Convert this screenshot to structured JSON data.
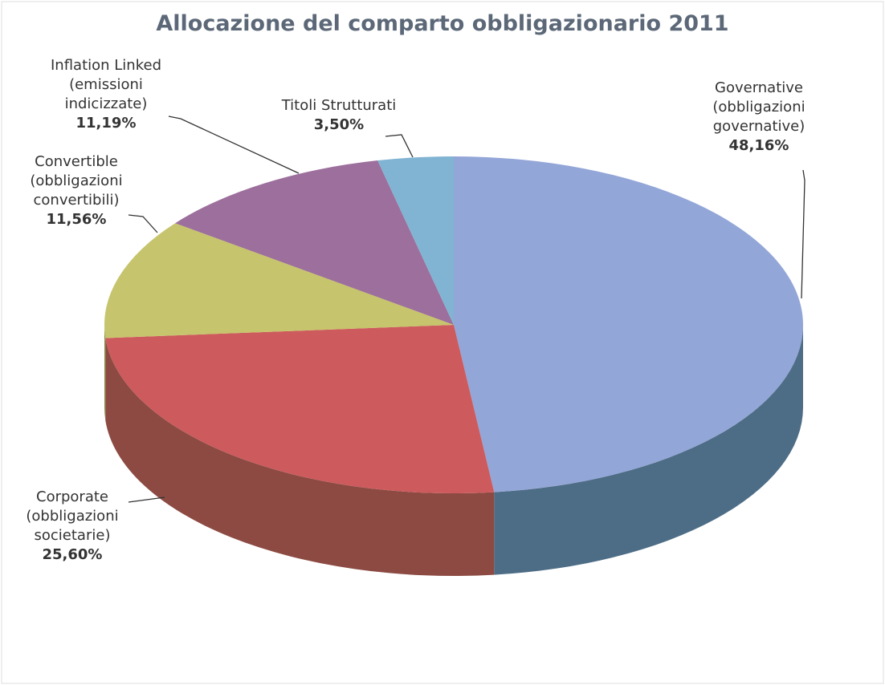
{
  "chart_data": {
    "type": "pie",
    "title": "Allocazione del comparto obbligazionario 2011",
    "categories": [
      "Governative\n(obbligazioni\ngovernative)",
      "Corporate\n(obbligazioni\nsocietarie)",
      "Convertible\n(obbligazioni\nconvertibili)",
      "Inflation Linked\n(emissioni\nindicizzate)",
      "Titoli Strutturati"
    ],
    "values": [
      48.16,
      25.6,
      11.56,
      11.19,
      3.5
    ],
    "value_labels": [
      "48,16%",
      "25,60%",
      "11,56%",
      "11,19%",
      "3,50%"
    ],
    "colors": [
      "#93a6d8",
      "#cd5a5c",
      "#c6c46c",
      "#9c6f9c",
      "#80b4d2"
    ],
    "side_colors": [
      "#4d6d86",
      "#8c4a42",
      "#8a8a48",
      "#6a4a6a",
      "#4e7f96"
    ]
  }
}
